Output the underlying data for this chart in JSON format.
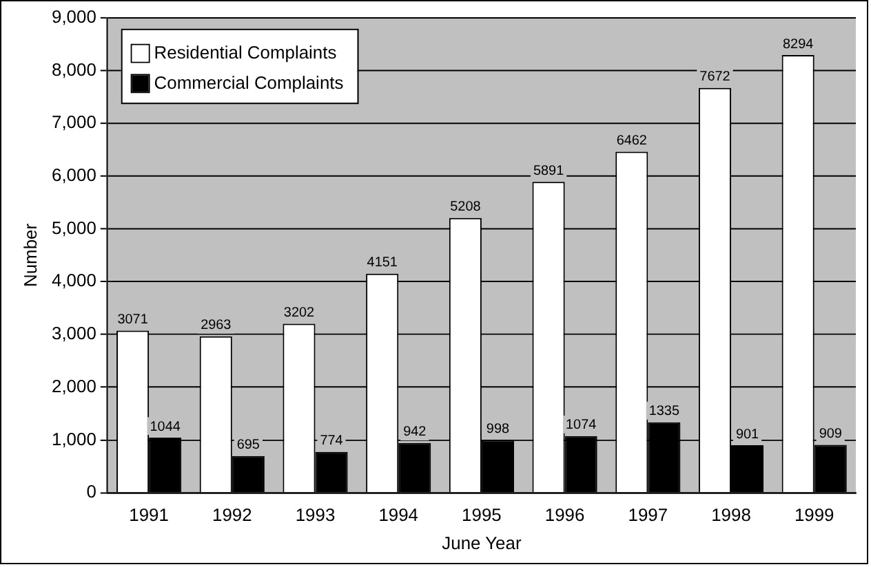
{
  "chart_data": {
    "type": "bar",
    "xlabel": "June Year",
    "ylabel": "Number",
    "categories": [
      "1991",
      "1992",
      "1993",
      "1994",
      "1995",
      "1996",
      "1997",
      "1998",
      "1999"
    ],
    "series": [
      {
        "name": "Residential Complaints",
        "color": "#ffffff",
        "values": [
          3071,
          2963,
          3202,
          4151,
          5208,
          5891,
          6462,
          7672,
          8294
        ]
      },
      {
        "name": "Commercial Complaints",
        "color": "#000000",
        "values": [
          1044,
          695,
          774,
          942,
          998,
          1074,
          1335,
          901,
          909
        ]
      }
    ],
    "ylim": [
      0,
      9000
    ],
    "yticks": [
      {
        "value": 0,
        "label": "0"
      },
      {
        "value": 1000,
        "label": "1,000"
      },
      {
        "value": 2000,
        "label": "2,000"
      },
      {
        "value": 3000,
        "label": "3,000"
      },
      {
        "value": 4000,
        "label": "4,000"
      },
      {
        "value": 5000,
        "label": "5,000"
      },
      {
        "value": 6000,
        "label": "6,000"
      },
      {
        "value": 7000,
        "label": "7,000"
      },
      {
        "value": 8000,
        "label": "8,000"
      },
      {
        "value": 9000,
        "label": "9,000"
      }
    ],
    "grid": "y",
    "legend": "top left",
    "data_labels": true
  }
}
